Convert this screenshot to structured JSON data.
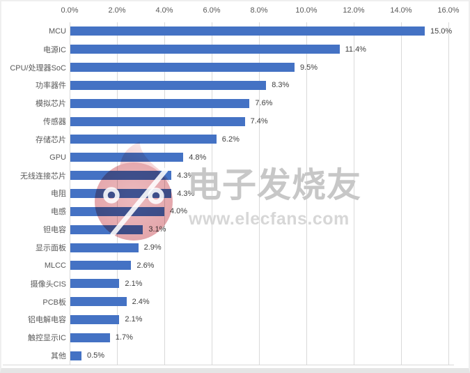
{
  "watermark": {
    "brand_text": "电子发烧友",
    "url_text": "www.elecfans.com",
    "brand_color": "#c7c7c7",
    "url_color": "#d7d7d7",
    "logo_pink": "#e7aeb3",
    "logo_tip_pink": "#f3cdd0"
  },
  "chart_data": {
    "type": "bar",
    "orientation": "horizontal",
    "title": "",
    "xlabel": "",
    "ylabel": "",
    "xlim": [
      0,
      16
    ],
    "grid": true,
    "x_ticks": [
      "0.0%",
      "2.0%",
      "4.0%",
      "6.0%",
      "8.0%",
      "10.0%",
      "12.0%",
      "14.0%",
      "16.0%"
    ],
    "categories": [
      "MCU",
      "电源IC",
      "CPU/处理器SoC",
      "功率器件",
      "模拟芯片",
      "传感器",
      "存储芯片",
      "GPU",
      "无线连接芯片",
      "电阻",
      "电感",
      "钽电容",
      "显示面板",
      "MLCC",
      "摄像头CIS",
      "PCB板",
      "铝电解电容",
      "触控显示IC",
      "其他"
    ],
    "values": [
      15.0,
      11.4,
      9.5,
      8.3,
      7.6,
      7.4,
      6.2,
      4.8,
      4.3,
      4.3,
      4.0,
      3.1,
      2.9,
      2.6,
      2.1,
      2.4,
      2.1,
      1.7,
      0.5
    ],
    "value_labels": [
      "15.0%",
      "11.4%",
      "9.5%",
      "8.3%",
      "7.6%",
      "7.4%",
      "6.2%",
      "4.8%",
      "4.3%",
      "4.3%",
      "4.0%",
      "3.1%",
      "2.9%",
      "2.6%",
      "2.1%",
      "2.4%",
      "2.1%",
      "1.7%",
      "0.5%"
    ],
    "bar_color": "#4472c4",
    "gridline_color": "#d9d9d9",
    "axis_label_color": "#595959",
    "value_label_color": "#404040"
  }
}
